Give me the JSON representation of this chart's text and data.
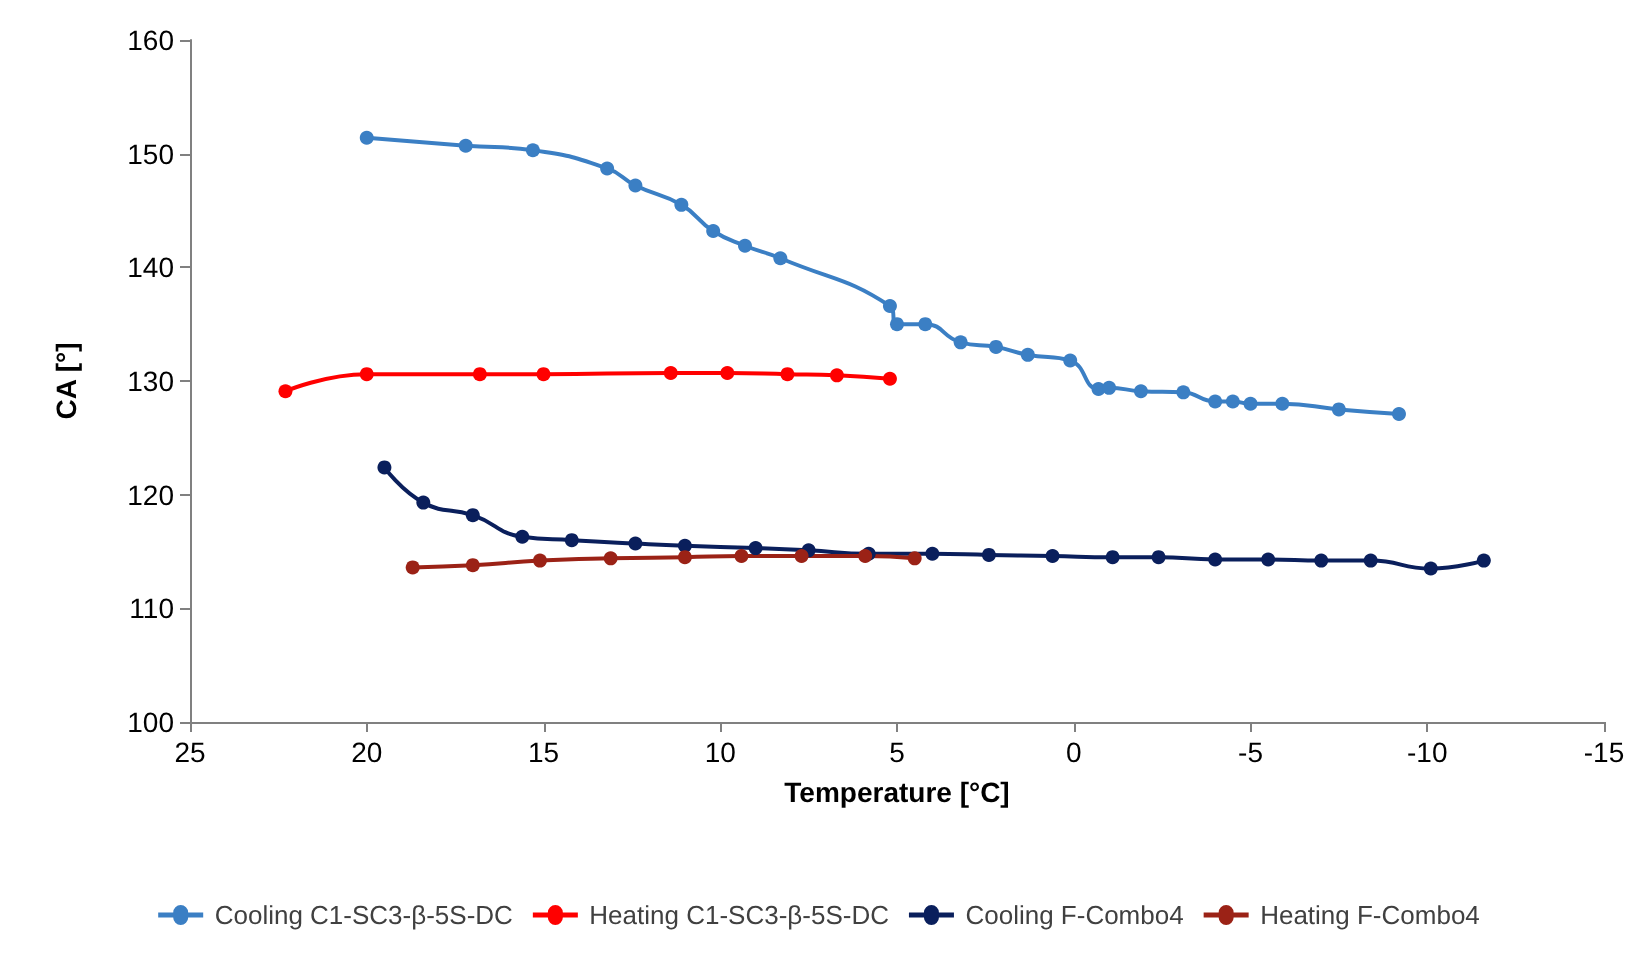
{
  "chart_data": {
    "type": "line",
    "xlabel": "Temperature [°C]",
    "ylabel": "CA [°]",
    "xlim": [
      25,
      -15
    ],
    "xticks": [
      25,
      20,
      15,
      10,
      5,
      0,
      -5,
      -10,
      -15
    ],
    "ylim": [
      100,
      160
    ],
    "yticks": [
      100,
      110,
      120,
      130,
      140,
      150,
      160
    ],
    "grid": false,
    "legend": "bottom",
    "marker": "circle",
    "line_style": "solid",
    "series": [
      {
        "name": "Cooling C1-SC3-β-5S-DC",
        "color": "#3b7fc4",
        "x": [
          20.0,
          17.2,
          15.3,
          13.2,
          12.4,
          11.1,
          10.2,
          9.3,
          8.3,
          5.2,
          5.0,
          4.2,
          3.2,
          2.2,
          1.3,
          0.1,
          -0.7,
          -1.0,
          -1.9,
          -3.1,
          -4.0,
          -4.5,
          -5.0,
          -5.9,
          -7.5,
          -9.2
        ],
        "values": [
          151.4,
          150.7,
          150.3,
          148.7,
          147.2,
          145.5,
          143.2,
          141.9,
          140.8,
          136.6,
          135.0,
          135.0,
          133.4,
          133.0,
          132.3,
          131.8,
          129.3,
          129.4,
          129.1,
          129.0,
          128.2,
          128.2,
          128.0,
          128.0,
          127.5,
          127.1
        ]
      },
      {
        "name": "Heating C1-SC3-β-5S-DC",
        "color": "#ff0000",
        "x": [
          22.3,
          20.0,
          16.8,
          15.0,
          11.4,
          9.8,
          8.1,
          6.7,
          5.2
        ],
        "values": [
          129.1,
          130.6,
          130.6,
          130.6,
          130.7,
          130.7,
          130.6,
          130.5,
          130.2
        ]
      },
      {
        "name": "Cooling F-Combo4",
        "color": "#0a1f5c",
        "x": [
          19.5,
          18.4,
          17.0,
          15.6,
          14.2,
          12.4,
          11.0,
          9.0,
          7.5,
          5.8,
          4.0,
          2.4,
          0.6,
          -1.1,
          -2.4,
          -4.0,
          -5.5,
          -7.0,
          -8.4,
          -10.1,
          -11.6
        ],
        "values": [
          122.4,
          119.3,
          118.2,
          116.3,
          116.0,
          115.7,
          115.5,
          115.3,
          115.1,
          114.8,
          114.8,
          114.7,
          114.6,
          114.5,
          114.5,
          114.3,
          114.3,
          114.2,
          114.2,
          113.5,
          114.2
        ]
      },
      {
        "name": "Heating F-Combo4",
        "color": "#9b2216",
        "x": [
          18.7,
          17.0,
          15.1,
          13.1,
          11.0,
          9.4,
          7.7,
          5.9,
          4.5
        ],
        "values": [
          113.6,
          113.8,
          114.2,
          114.4,
          114.5,
          114.6,
          114.6,
          114.6,
          114.4
        ]
      }
    ]
  }
}
